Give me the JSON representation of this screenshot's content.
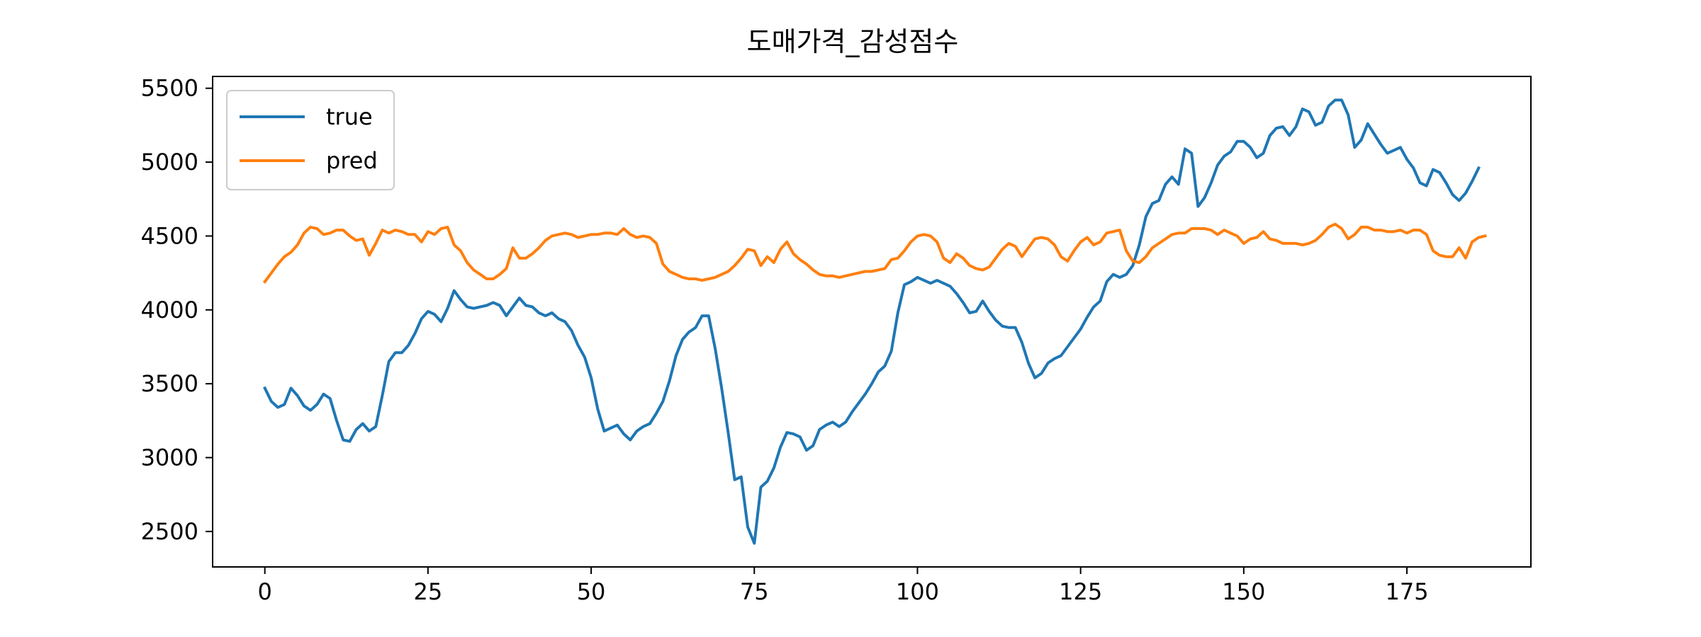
{
  "chart_data": {
    "type": "line",
    "title": "도매가격_감성점수",
    "xlabel": "",
    "ylabel": "",
    "xlim": [
      -8,
      194
    ],
    "ylim": [
      2260,
      5580
    ],
    "xticks": [
      0,
      25,
      50,
      75,
      100,
      125,
      150,
      175
    ],
    "yticks": [
      2500,
      3000,
      3500,
      4000,
      4500,
      5000,
      5500
    ],
    "grid": false,
    "legend": "top-left",
    "series": [
      {
        "name": "true",
        "color": "#1f77b4",
        "values": [
          3470,
          3380,
          3340,
          3360,
          3470,
          3420,
          3350,
          3320,
          3360,
          3430,
          3400,
          3250,
          3120,
          3110,
          3190,
          3230,
          3180,
          3210,
          3420,
          3650,
          3710,
          3710,
          3760,
          3840,
          3940,
          3990,
          3970,
          3920,
          4010,
          4130,
          4070,
          4020,
          4010,
          4020,
          4030,
          4050,
          4030,
          3960,
          4020,
          4080,
          4030,
          4020,
          3980,
          3960,
          3980,
          3940,
          3920,
          3860,
          3760,
          3680,
          3540,
          3330,
          3180,
          3200,
          3220,
          3160,
          3120,
          3180,
          3210,
          3230,
          3300,
          3380,
          3520,
          3690,
          3800,
          3850,
          3880,
          3960,
          3960,
          3740,
          3470,
          3170,
          2850,
          2870,
          2530,
          2420,
          2800,
          2840,
          2930,
          3070,
          3170,
          3160,
          3140,
          3050,
          3080,
          3190,
          3220,
          3240,
          3210,
          3240,
          3310,
          3370,
          3430,
          3500,
          3580,
          3620,
          3720,
          3980,
          4170,
          4190,
          4220,
          4200,
          4180,
          4200,
          4180,
          4160,
          4110,
          4050,
          3980,
          3990,
          4060,
          3990,
          3930,
          3890,
          3880,
          3880,
          3780,
          3640,
          3540,
          3570,
          3640,
          3670,
          3690,
          3750,
          3810,
          3870,
          3950,
          4020,
          4060,
          4190,
          4240,
          4220,
          4240,
          4300,
          4440,
          4630,
          4720,
          4740,
          4850,
          4900,
          4850,
          5090,
          5060,
          4700,
          4760,
          4860,
          4980,
          5040,
          5070,
          5140,
          5140,
          5100,
          5030,
          5060,
          5180,
          5230,
          5240,
          5180,
          5240,
          5360,
          5340,
          5250,
          5270,
          5380,
          5420,
          5420,
          5320,
          5100,
          5150,
          5260,
          5190,
          5120,
          5060,
          5080,
          5100,
          5020,
          4960,
          4860,
          4840,
          4950,
          4930,
          4860,
          4780,
          4740,
          4790,
          4870,
          4960
        ]
      },
      {
        "name": "pred",
        "color": "#ff7f0e",
        "values": [
          4190,
          4250,
          4310,
          4360,
          4390,
          4440,
          4520,
          4560,
          4550,
          4510,
          4520,
          4540,
          4540,
          4500,
          4470,
          4480,
          4370,
          4450,
          4540,
          4520,
          4540,
          4530,
          4510,
          4510,
          4460,
          4530,
          4510,
          4550,
          4560,
          4440,
          4400,
          4320,
          4270,
          4240,
          4210,
          4210,
          4240,
          4280,
          4420,
          4350,
          4350,
          4380,
          4420,
          4470,
          4500,
          4510,
          4520,
          4510,
          4490,
          4500,
          4510,
          4510,
          4520,
          4520,
          4510,
          4550,
          4510,
          4490,
          4500,
          4490,
          4450,
          4310,
          4260,
          4240,
          4220,
          4210,
          4210,
          4200,
          4210,
          4220,
          4240,
          4260,
          4300,
          4350,
          4410,
          4400,
          4300,
          4360,
          4320,
          4410,
          4460,
          4380,
          4340,
          4310,
          4270,
          4240,
          4230,
          4230,
          4220,
          4230,
          4240,
          4250,
          4260,
          4260,
          4270,
          4280,
          4340,
          4350,
          4400,
          4460,
          4500,
          4510,
          4500,
          4460,
          4350,
          4320,
          4380,
          4350,
          4300,
          4280,
          4270,
          4290,
          4350,
          4410,
          4450,
          4430,
          4360,
          4420,
          4480,
          4490,
          4480,
          4440,
          4360,
          4330,
          4400,
          4460,
          4490,
          4440,
          4460,
          4520,
          4530,
          4540,
          4400,
          4330,
          4320,
          4360,
          4420,
          4450,
          4480,
          4510,
          4520,
          4520,
          4550,
          4550,
          4550,
          4540,
          4510,
          4540,
          4520,
          4500,
          4450,
          4480,
          4490,
          4530,
          4480,
          4470,
          4450,
          4450,
          4450,
          4440,
          4450,
          4470,
          4510,
          4560,
          4580,
          4550,
          4480,
          4510,
          4560,
          4560,
          4540,
          4540,
          4530,
          4530,
          4540,
          4520,
          4540,
          4540,
          4510,
          4400,
          4370,
          4360,
          4360,
          4420,
          4350,
          4460,
          4490,
          4500
        ]
      }
    ]
  }
}
